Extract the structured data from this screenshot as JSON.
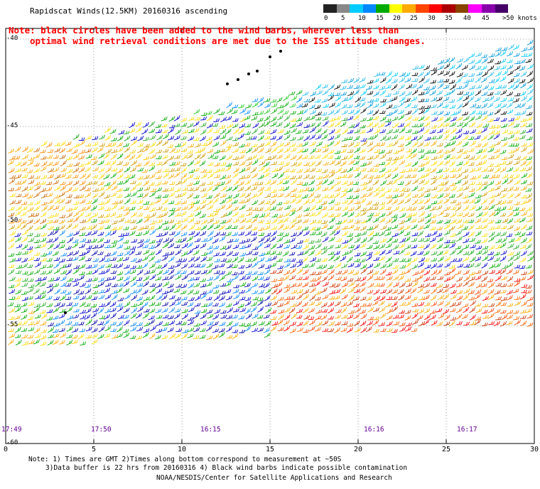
{
  "title": "Rapidscat Winds(12.5KM) 20160316 ascending",
  "note_line1": "Note: black circles have been added to the wind barbs, wherever less than",
  "note_line2": "optimal wind retrieval conditions are met due to the ISS attitude changes.",
  "legend": {
    "labels": [
      "0",
      "5",
      "10",
      "15",
      "20",
      "25",
      "30",
      "35",
      "40",
      "45",
      ">50 knots"
    ],
    "colors": [
      "#222222",
      "#888888",
      "#00ccff",
      "#0088ff",
      "#00aa00",
      "#ffff00",
      "#ffaa00",
      "#ff4400",
      "#ff0000",
      "#aa0000",
      "#884400",
      "#ff00ff",
      "#8800aa",
      "#440066"
    ]
  },
  "lat_labels": [
    "-40",
    "-45",
    "-50",
    "-55",
    "-60"
  ],
  "lon_labels": [
    "0",
    "5",
    "10",
    "15",
    "20",
    "25",
    "30"
  ],
  "time_labels": [
    "17:49",
    "17:50",
    "16:15",
    "16:16",
    "16:17"
  ],
  "footer": {
    "line1": "Note: 1) Times are GMT 2)Times along bottom correspond to measurement at ~50S",
    "line2": "3)Data buffer is 22 hrs from 20160316 4) Black wind barbs indicate possible contamination",
    "line3": "NOAA/NESDIS/Center for Satellite Applications and Research"
  }
}
